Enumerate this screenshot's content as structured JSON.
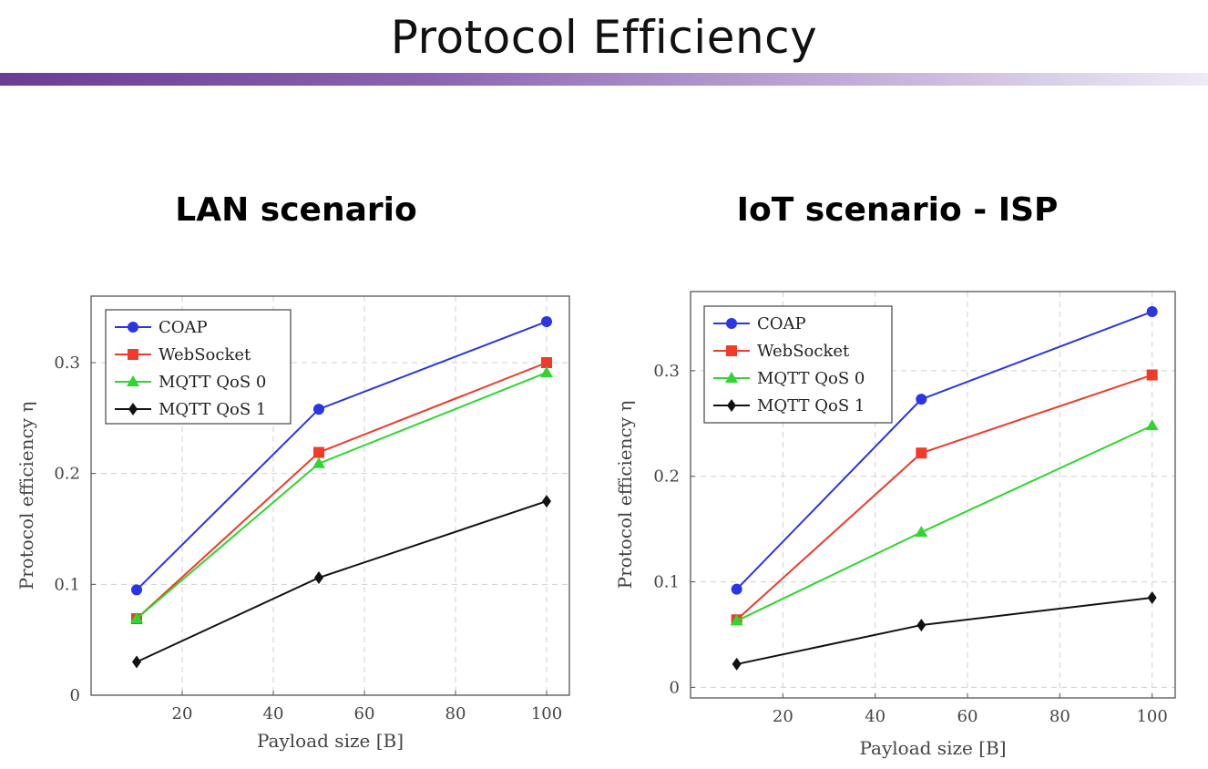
{
  "slide": {
    "title": "Protocol Efficiency"
  },
  "chart_data": [
    {
      "type": "line",
      "subtitle": "LAN scenario",
      "xlabel": "Payload size [B]",
      "ylabel": "Protocol efficiency η",
      "xlim": [
        0,
        105
      ],
      "ylim": [
        0,
        0.36
      ],
      "xticks": [
        20,
        40,
        60,
        80,
        100
      ],
      "yticks": [
        0,
        0.1,
        0.2,
        0.3
      ],
      "ytick_labels": [
        "0",
        "0.1",
        "0.2",
        "0.3"
      ],
      "grid": true,
      "legend": "top-left",
      "x": [
        10,
        50,
        100
      ],
      "series": [
        {
          "name": "COAP",
          "color": "#2a35e6",
          "marker": "circle",
          "values": [
            0.095,
            0.258,
            0.337
          ]
        },
        {
          "name": "WebSocket",
          "color": "#f03a2a",
          "marker": "square",
          "values": [
            0.069,
            0.219,
            0.3
          ]
        },
        {
          "name": "MQTT QoS 0",
          "color": "#2fd62f",
          "marker": "triangle",
          "values": [
            0.069,
            0.209,
            0.291
          ]
        },
        {
          "name": "MQTT QoS 1",
          "color": "#111111",
          "marker": "diamond",
          "values": [
            0.03,
            0.106,
            0.175
          ]
        }
      ]
    },
    {
      "type": "line",
      "subtitle": "IoT scenario - ISP",
      "xlabel": "Payload size [B]",
      "ylabel": "Protocol efficiency η",
      "xlim": [
        0,
        105
      ],
      "ylim": [
        -0.01,
        0.375
      ],
      "xticks": [
        20,
        40,
        60,
        80,
        100
      ],
      "yticks": [
        0,
        0.1,
        0.2,
        0.3
      ],
      "ytick_labels": [
        "0",
        "0.1",
        "0.2",
        "0.3"
      ],
      "grid": true,
      "legend": "top-left",
      "x": [
        10,
        50,
        100
      ],
      "series": [
        {
          "name": "COAP",
          "color": "#2a35e6",
          "marker": "circle",
          "values": [
            0.093,
            0.273,
            0.356
          ]
        },
        {
          "name": "WebSocket",
          "color": "#f03a2a",
          "marker": "square",
          "values": [
            0.064,
            0.222,
            0.296
          ]
        },
        {
          "name": "MQTT QoS 0",
          "color": "#2fd62f",
          "marker": "triangle",
          "values": [
            0.063,
            0.147,
            0.248
          ]
        },
        {
          "name": "MQTT QoS 1",
          "color": "#111111",
          "marker": "diamond",
          "values": [
            0.022,
            0.059,
            0.085
          ]
        }
      ]
    }
  ]
}
